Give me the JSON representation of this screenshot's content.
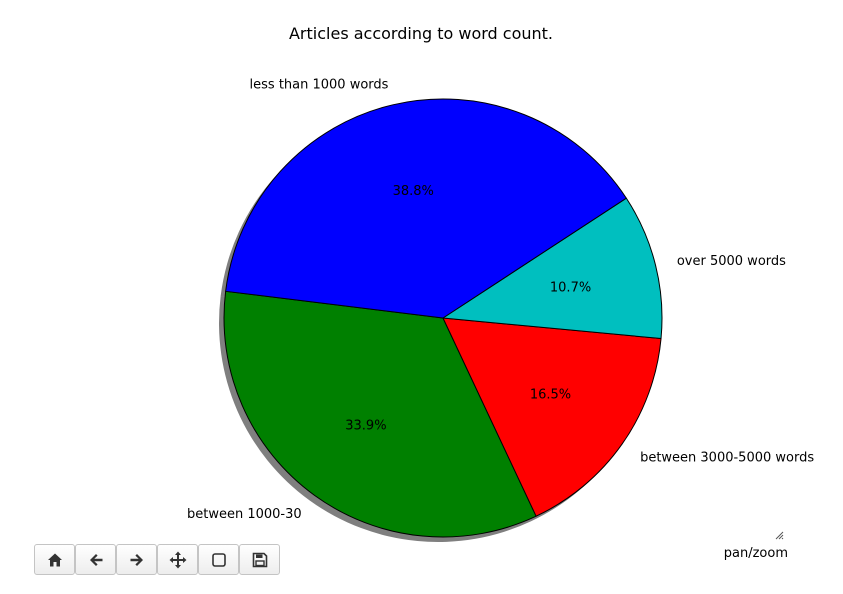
{
  "chart_data": {
    "type": "pie",
    "title": "Articles according to word count.",
    "slices": [
      {
        "label": "between 1000-30",
        "percent_label": "33.9%",
        "value": 33.9,
        "color": "#008000"
      },
      {
        "label": "between 3000-5000 words",
        "percent_label": "16.5%",
        "value": 16.5,
        "color": "#ff0000"
      },
      {
        "label": "over 5000 words",
        "percent_label": "10.7%",
        "value": 10.7,
        "color": "#00bfbf"
      },
      {
        "label": "less than 1000 words",
        "percent_label": "38.8%",
        "value": 38.8,
        "color": "#0000ff"
      }
    ],
    "shadow": true,
    "legend": "none"
  },
  "toolbar": {
    "buttons": [
      {
        "name": "home-button",
        "icon": "home-icon"
      },
      {
        "name": "back-button",
        "icon": "arrow-left-icon"
      },
      {
        "name": "forward-button",
        "icon": "arrow-right-icon"
      },
      {
        "name": "pan-button",
        "icon": "move-icon"
      },
      {
        "name": "zoom-button",
        "icon": "zoom-rect-icon"
      },
      {
        "name": "save-button",
        "icon": "save-icon"
      }
    ]
  },
  "status": {
    "mode": "pan/zoom"
  }
}
